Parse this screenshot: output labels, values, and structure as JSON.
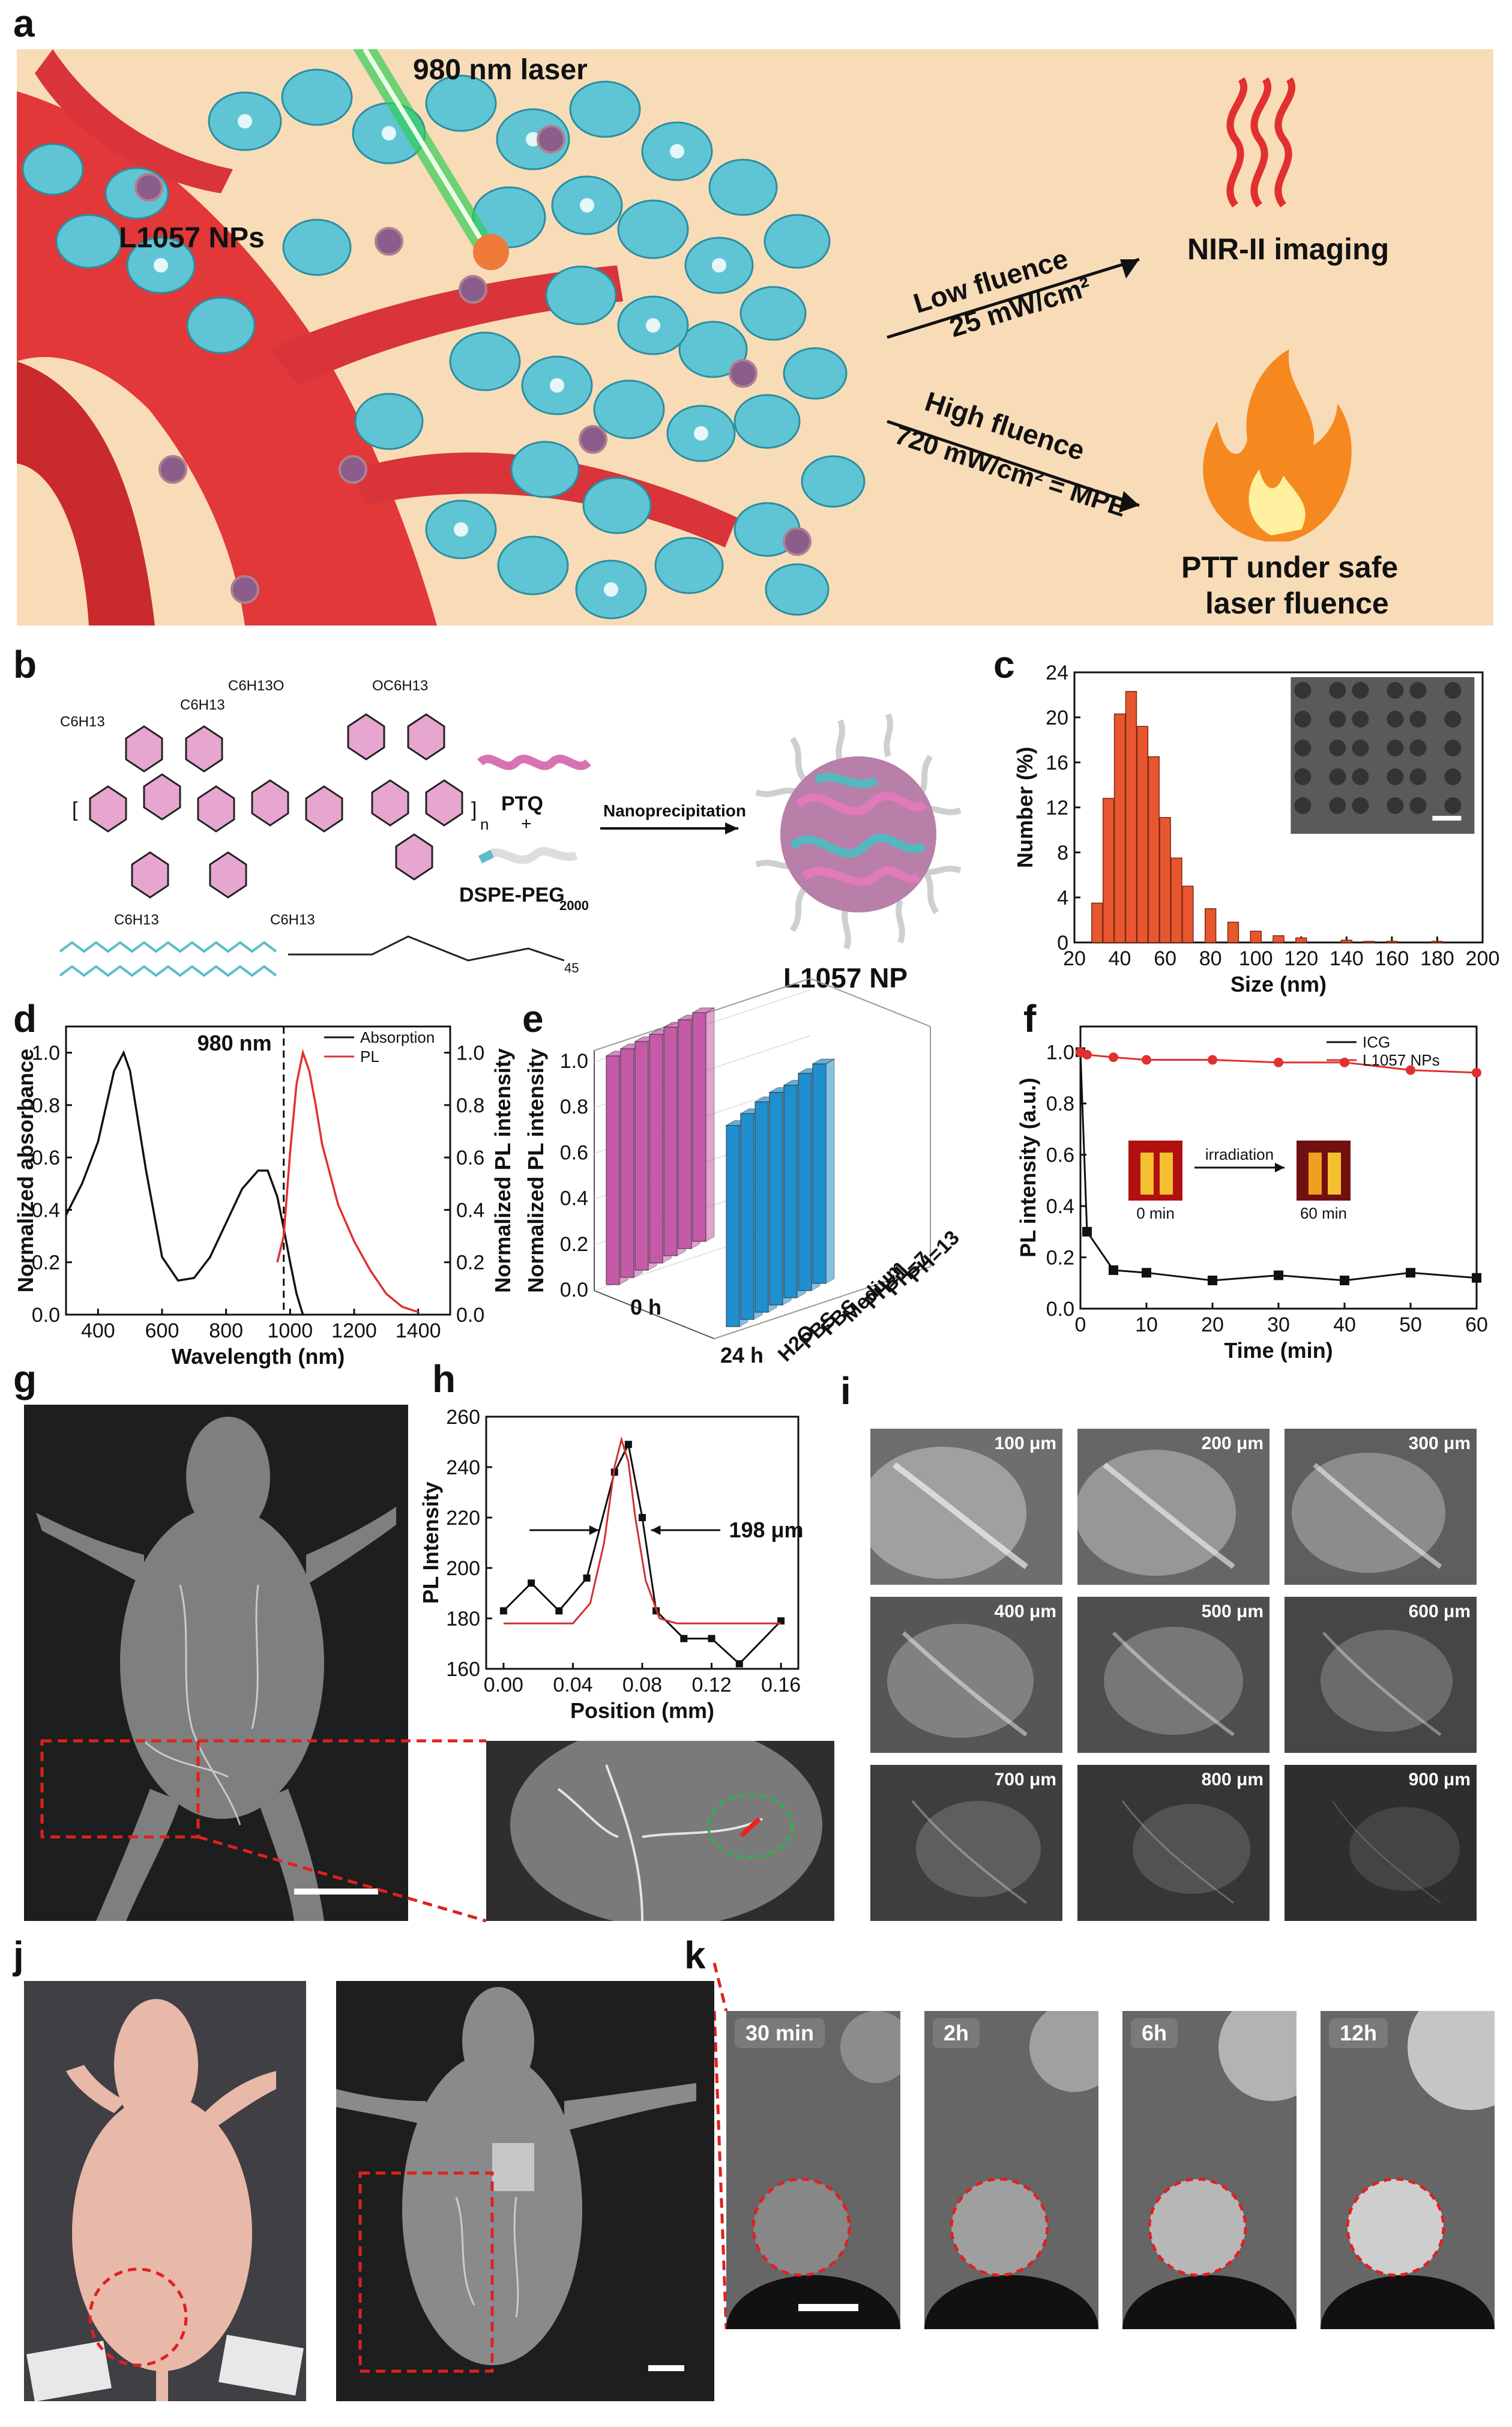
{
  "panel_labels": {
    "a": "a",
    "b": "b",
    "c": "c",
    "d": "d",
    "e": "e",
    "f": "f",
    "g": "g",
    "h": "h",
    "i": "i",
    "j": "j",
    "k": "k"
  },
  "panel_a": {
    "laser": "980 nm laser",
    "nps": "L1057 NPs",
    "low_line1": "Low fluence",
    "low_line2": "25 mW/cm²",
    "high_line1": "High fluence",
    "high_line2": "720 mW/cm² = MPE",
    "imaging": "NIR-II imaging",
    "ptt_line1": "PTT under safe",
    "ptt_line2": "laser fluence",
    "colors": {
      "background": "#f8dcb8",
      "vessel": "#e2383a",
      "cell": "#5fc5d4",
      "laser": "#33cc55",
      "arrow": "#e23030",
      "flame": "#f5891f"
    }
  },
  "panel_b": {
    "ptq": "PTQ",
    "plus": "+",
    "dspe": "DSPE-PEG",
    "dspe_sub": "2000",
    "method": "Nanoprecipitation",
    "product": "L1057 NP",
    "subscript_n": "n",
    "subscript_45": "45",
    "substituents": [
      "C6H13",
      "C6H13",
      "C6H13O",
      "OC6H13",
      "C6H13",
      "C6H13"
    ]
  },
  "chart_data": [
    {
      "panel": "c",
      "type": "bar",
      "xlabel": "Size (nm)",
      "ylabel": "Number (%)",
      "xlim": [
        20,
        200
      ],
      "ylim": [
        0,
        24
      ],
      "xticks": [
        "20",
        "40",
        "60",
        "80",
        "100",
        "120",
        "140",
        "160",
        "180",
        "200"
      ],
      "yticks": [
        "0",
        "4",
        "8",
        "12",
        "16",
        "20",
        "24"
      ],
      "bin_centers": [
        30,
        35,
        40,
        45,
        50,
        55,
        60,
        65,
        70,
        80,
        90,
        100,
        110,
        120,
        140,
        150,
        160,
        180
      ],
      "values": [
        3.5,
        12.8,
        20.3,
        22.3,
        19.2,
        16.5,
        11.1,
        7.5,
        5.0,
        3.0,
        1.8,
        1.0,
        0.6,
        0.4,
        0.2,
        0.1,
        0.1,
        0.1
      ],
      "bar_color": "#e8562f"
    },
    {
      "panel": "d",
      "type": "line",
      "xlabel": "Wavelength (nm)",
      "ylabel": "Normalized absorbance",
      "y2label": "Normalized PL intensity",
      "xlim": [
        300,
        1500
      ],
      "ylim": [
        0,
        1.1
      ],
      "xticks": [
        "400",
        "600",
        "800",
        "1000",
        "1200",
        "1400"
      ],
      "yticks": [
        "0.0",
        "0.2",
        "0.4",
        "0.6",
        "0.8",
        "1.0"
      ],
      "annotation": "980 nm",
      "series": [
        {
          "name": "Absorption",
          "color": "#111111",
          "x": [
            300,
            350,
            400,
            450,
            480,
            500,
            550,
            600,
            650,
            700,
            750,
            800,
            850,
            900,
            930,
            960,
            980,
            1000,
            1020,
            1040
          ],
          "y": [
            0.38,
            0.5,
            0.66,
            0.93,
            1.0,
            0.93,
            0.55,
            0.22,
            0.13,
            0.14,
            0.22,
            0.35,
            0.48,
            0.55,
            0.55,
            0.45,
            0.33,
            0.2,
            0.08,
            0.0
          ]
        },
        {
          "name": "PL",
          "color": "#e03030",
          "x": [
            960,
            980,
            1000,
            1020,
            1040,
            1060,
            1080,
            1100,
            1150,
            1200,
            1250,
            1300,
            1350,
            1400
          ],
          "y": [
            0.2,
            0.3,
            0.62,
            0.88,
            1.0,
            0.93,
            0.8,
            0.65,
            0.42,
            0.28,
            0.17,
            0.08,
            0.03,
            0.01
          ]
        }
      ]
    },
    {
      "panel": "e",
      "type": "bar",
      "zlabel": "Normalized PL intensity",
      "zticks": [
        "0.0",
        "0.2",
        "0.4",
        "0.6",
        "0.8",
        "1.0"
      ],
      "time_labels": [
        "0 h",
        "24 h"
      ],
      "categories": [
        "H2O",
        "PBS",
        "FBS",
        "Medium",
        "PH=1",
        "PH=7",
        "PH=13"
      ],
      "series": [
        {
          "name": "0 h",
          "values": [
            1.0,
            1.0,
            1.0,
            1.0,
            1.0,
            1.0,
            1.0
          ],
          "color": "#c55aa8"
        },
        {
          "name": "24 h",
          "values": [
            0.88,
            0.9,
            0.92,
            0.93,
            0.93,
            0.95,
            0.96
          ],
          "color": "#1f8fcf"
        }
      ]
    },
    {
      "panel": "f",
      "type": "line",
      "xlabel": "Time (min)",
      "ylabel": "PL intensity (a.u.)",
      "xlim": [
        0,
        60
      ],
      "ylim": [
        0,
        1.1
      ],
      "xticks": [
        "0",
        "10",
        "20",
        "30",
        "40",
        "50",
        "60"
      ],
      "yticks": [
        "0.0",
        "0.2",
        "0.4",
        "0.6",
        "0.8",
        "1.0"
      ],
      "inset": {
        "arrow": "irradiation",
        "left": "0 min",
        "right": "60 min"
      },
      "series": [
        {
          "name": "ICG",
          "color": "#111111",
          "x": [
            0,
            1,
            5,
            10,
            20,
            30,
            40,
            50,
            60
          ],
          "y": [
            1.0,
            0.3,
            0.15,
            0.14,
            0.11,
            0.13,
            0.11,
            0.14,
            0.12
          ]
        },
        {
          "name": "L1057 NPs",
          "color": "#e03030",
          "x": [
            0,
            1,
            5,
            10,
            20,
            30,
            40,
            50,
            60
          ],
          "y": [
            1.0,
            0.99,
            0.98,
            0.97,
            0.97,
            0.96,
            0.96,
            0.93,
            0.92
          ]
        }
      ]
    },
    {
      "panel": "h",
      "type": "line",
      "xlabel": "Position (mm)",
      "ylabel": "PL Intensity",
      "xlim": [
        -0.01,
        0.17
      ],
      "ylim": [
        160,
        260
      ],
      "xticks": [
        "0.00",
        "0.04",
        "0.08",
        "0.12",
        "0.16"
      ],
      "yticks": [
        "160",
        "180",
        "200",
        "220",
        "240",
        "260"
      ],
      "annotation": "198 μm",
      "series": [
        {
          "name": "data",
          "color": "#111111",
          "x": [
            0.0,
            0.016,
            0.032,
            0.048,
            0.064,
            0.072,
            0.08,
            0.088,
            0.104,
            0.12,
            0.136,
            0.16
          ],
          "y": [
            183,
            194,
            183,
            196,
            238,
            249,
            220,
            183,
            172,
            172,
            162,
            179
          ]
        },
        {
          "name": "fit",
          "color": "#d03030",
          "x": [
            0.0,
            0.04,
            0.05,
            0.058,
            0.064,
            0.068,
            0.072,
            0.076,
            0.082,
            0.09,
            0.1,
            0.16
          ],
          "y": [
            178,
            178,
            186,
            210,
            240,
            251,
            242,
            220,
            195,
            180,
            178,
            178
          ]
        }
      ]
    }
  ],
  "panel_i": {
    "depths": [
      "100 μm",
      "200 μm",
      "300 μm",
      "400 μm",
      "500 μm",
      "600 μm",
      "700 μm",
      "800 μm",
      "900 μm"
    ]
  },
  "panel_k": {
    "times": [
      "30 min",
      "2h",
      "6h",
      "12h"
    ]
  }
}
